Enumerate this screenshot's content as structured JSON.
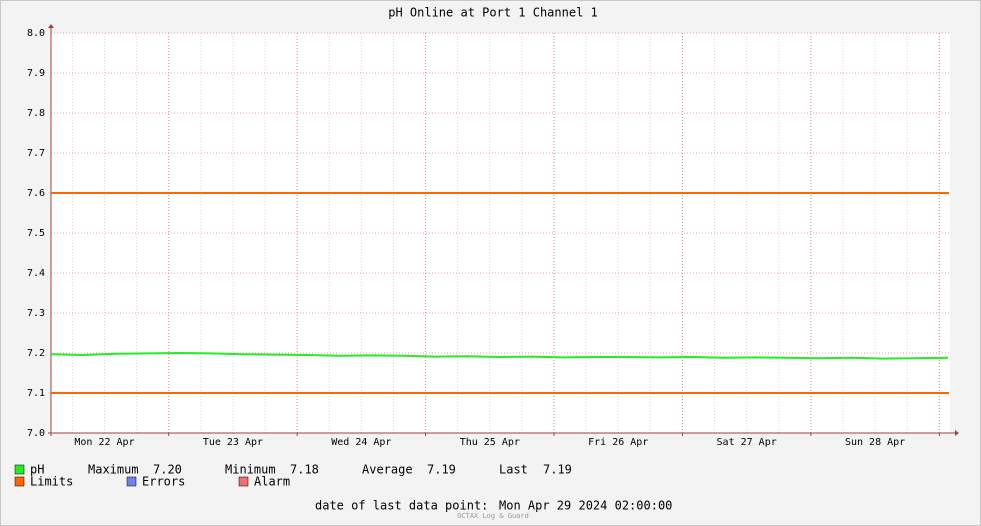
{
  "chart_data": {
    "type": "line",
    "title": "pH Online at Port 1 Channel 1",
    "x_labels": [
      "Mon 22 Apr",
      "Tue 23 Apr",
      "Wed 24 Apr",
      "Thu 25 Apr",
      "Fri 26 Apr",
      "Sat 27 Apr",
      "Sun 28 Apr"
    ],
    "series": [
      {
        "name": "pH",
        "color": "#22ee22",
        "values": [
          7.197,
          7.195,
          7.198,
          7.199,
          7.2,
          7.199,
          7.197,
          7.196,
          7.195,
          7.193,
          7.194,
          7.193,
          7.191,
          7.192,
          7.19,
          7.191,
          7.189,
          7.19,
          7.19,
          7.189,
          7.19,
          7.188,
          7.189,
          7.188,
          7.187,
          7.188,
          7.186,
          7.187,
          7.188
        ]
      }
    ],
    "limits": {
      "name": "Limits",
      "color": "#ff6600",
      "values": [
        7.1,
        7.6
      ]
    },
    "extra_legend": [
      {
        "name": "Errors",
        "color": "#7080ee"
      },
      {
        "name": "Alarm",
        "color": "#ee7070"
      }
    ],
    "stats": [
      {
        "name": "Maximum",
        "value": "7.20"
      },
      {
        "name": "Minimum",
        "value": "7.18"
      },
      {
        "name": "Average",
        "value": "7.19"
      },
      {
        "name": "Last",
        "value": "7.19"
      }
    ],
    "ylim": [
      7.0,
      8.0
    ],
    "yticks": [
      {
        "value": 7.0,
        "label": "7.0"
      },
      {
        "value": 7.1,
        "label": "7.1"
      },
      {
        "value": 7.2,
        "label": "7.2"
      },
      {
        "value": 7.3,
        "label": "7.3"
      },
      {
        "value": 7.4,
        "label": "7.4"
      },
      {
        "value": 7.5,
        "label": "7.5"
      },
      {
        "value": 7.6,
        "label": "7.6"
      },
      {
        "value": 7.7,
        "label": "7.7"
      },
      {
        "value": 7.8,
        "label": "7.8"
      },
      {
        "value": 7.9,
        "label": "7.9"
      },
      {
        "value": 8.0,
        "label": "8.0"
      }
    ],
    "grid": true,
    "footer_label": "date of last data point:",
    "footer_date": "Mon Apr 29 2024 02:00:00",
    "watermark": "OCTAX Log & Guard"
  }
}
